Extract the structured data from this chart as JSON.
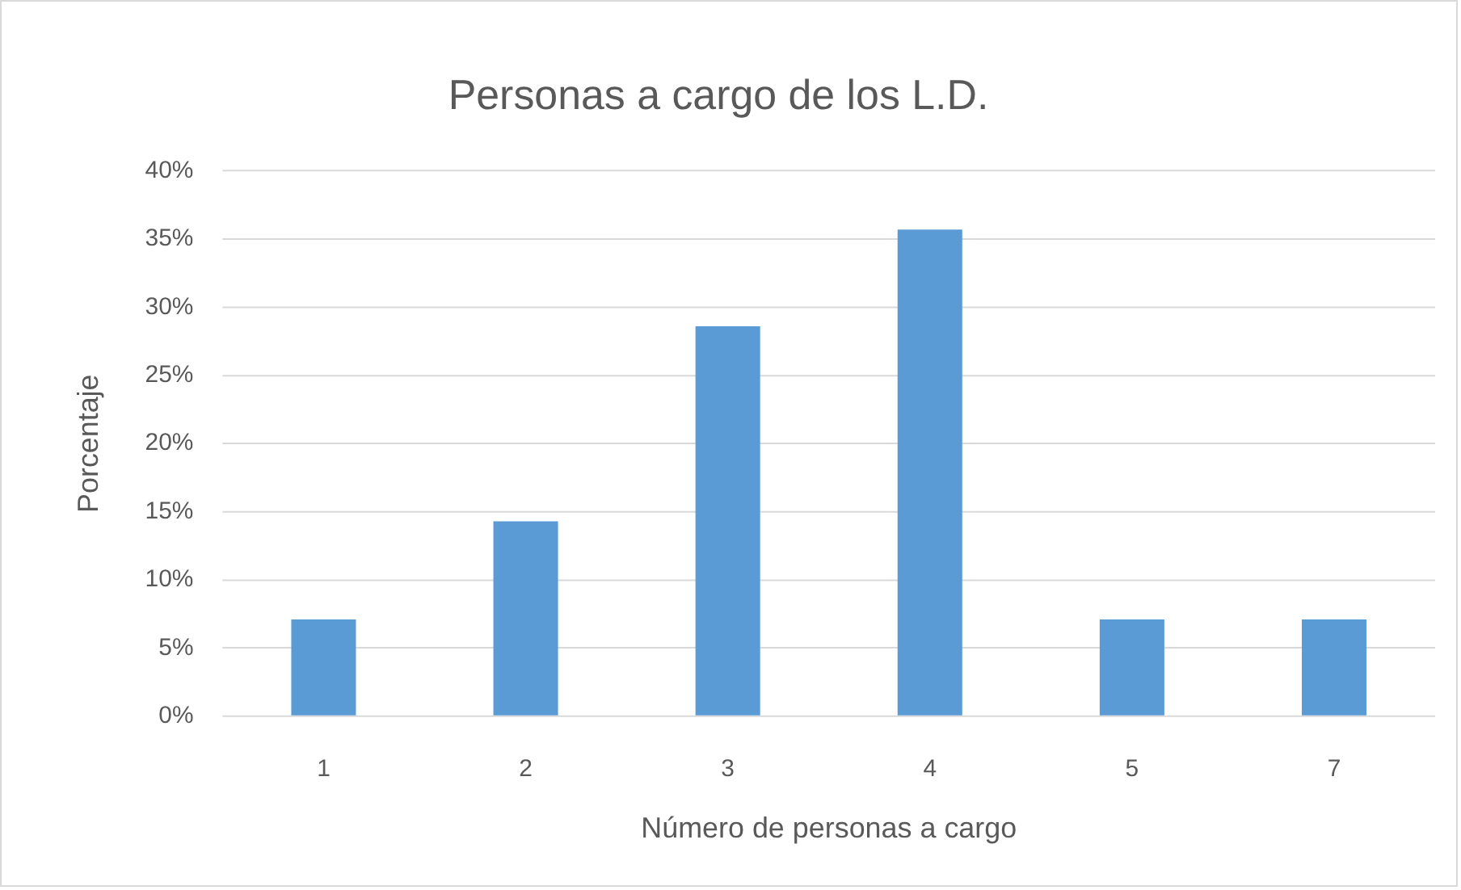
{
  "chart_data": {
    "type": "bar",
    "title": "Personas a cargo de los L.D.",
    "xlabel": "Número de personas a cargo",
    "ylabel": "Porcentaje",
    "categories": [
      "1",
      "2",
      "3",
      "4",
      "5",
      "7"
    ],
    "values": [
      7.1,
      14.3,
      28.6,
      35.7,
      7.1,
      7.1
    ],
    "color": "#5b9bd5",
    "ylim": [
      0,
      40
    ],
    "yticks": [
      {
        "value": 0,
        "label": "0%"
      },
      {
        "value": 5,
        "label": "5%"
      },
      {
        "value": 10,
        "label": "10%"
      },
      {
        "value": 15,
        "label": "15%"
      },
      {
        "value": 20,
        "label": "20%"
      },
      {
        "value": 25,
        "label": "25%"
      },
      {
        "value": 30,
        "label": "30%"
      },
      {
        "value": 35,
        "label": "35%"
      },
      {
        "value": 40,
        "label": "40%"
      }
    ],
    "grid": "y"
  }
}
